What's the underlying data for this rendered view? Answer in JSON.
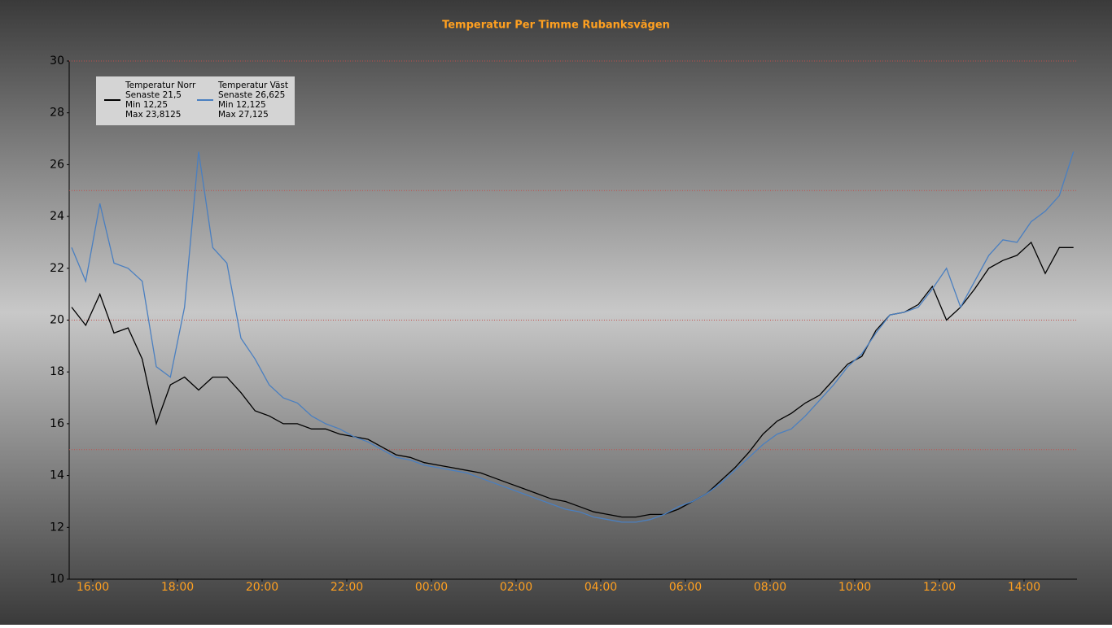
{
  "chart_data": {
    "type": "line",
    "title": "Temperatur Per Timme Rubanksvägen",
    "x": [
      "15:30",
      "15:50",
      "16:10",
      "16:30",
      "16:50",
      "17:10",
      "17:30",
      "17:50",
      "18:10",
      "18:30",
      "18:50",
      "19:10",
      "19:30",
      "19:50",
      "20:10",
      "20:30",
      "20:50",
      "21:10",
      "21:30",
      "21:50",
      "22:10",
      "22:30",
      "22:50",
      "23:10",
      "23:30",
      "23:50",
      "00:10",
      "00:30",
      "00:50",
      "01:10",
      "01:30",
      "01:50",
      "02:10",
      "02:30",
      "02:50",
      "03:10",
      "03:30",
      "03:50",
      "04:10",
      "04:30",
      "04:50",
      "05:10",
      "05:30",
      "05:50",
      "06:10",
      "06:30",
      "06:50",
      "07:10",
      "07:30",
      "07:50",
      "08:10",
      "08:30",
      "08:50",
      "09:10",
      "09:30",
      "09:50",
      "10:10",
      "10:30",
      "10:50",
      "11:10",
      "11:30",
      "11:50",
      "12:10",
      "12:30",
      "12:50",
      "13:10",
      "13:30",
      "13:50",
      "14:10",
      "14:30",
      "14:50",
      "15:10"
    ],
    "xticks": [
      "16:00",
      "18:00",
      "20:00",
      "22:00",
      "00:00",
      "02:00",
      "04:00",
      "06:00",
      "08:00",
      "10:00",
      "12:00",
      "14:00"
    ],
    "series": [
      {
        "name": "Temperatur Norr",
        "color": "#000000",
        "stats": [
          "Senaste 21,5",
          "Min 12,25",
          "Max 23,8125"
        ],
        "values": [
          20.5,
          19.8,
          21.0,
          19.5,
          19.7,
          18.5,
          16.0,
          17.5,
          17.8,
          17.3,
          17.8,
          17.8,
          17.2,
          16.5,
          16.3,
          16.0,
          16.0,
          15.8,
          15.8,
          15.6,
          15.5,
          15.4,
          15.1,
          14.8,
          14.7,
          14.5,
          14.4,
          14.3,
          14.2,
          14.1,
          13.9,
          13.7,
          13.5,
          13.3,
          13.1,
          13.0,
          12.8,
          12.6,
          12.5,
          12.4,
          12.4,
          12.5,
          12.5,
          12.7,
          13.0,
          13.3,
          13.8,
          14.3,
          14.9,
          15.6,
          16.1,
          16.4,
          16.8,
          17.1,
          17.7,
          18.3,
          18.6,
          19.6,
          20.2,
          20.3,
          20.6,
          21.3,
          20.0,
          20.5,
          21.2,
          22.0,
          22.3,
          22.5,
          23.0,
          21.8,
          22.8,
          22.8
        ]
      },
      {
        "name": "Temperatur Väst",
        "color": "#4a7fc0",
        "stats": [
          "Senaste 26,625",
          "Min 12,125",
          "Max 27,125"
        ],
        "values": [
          22.8,
          21.5,
          24.5,
          22.2,
          22.0,
          21.5,
          18.2,
          17.8,
          20.5,
          26.5,
          22.8,
          22.2,
          19.3,
          18.5,
          17.5,
          17.0,
          16.8,
          16.3,
          16.0,
          15.8,
          15.5,
          15.3,
          15.0,
          14.7,
          14.6,
          14.4,
          14.3,
          14.2,
          14.1,
          13.9,
          13.7,
          13.5,
          13.3,
          13.1,
          12.9,
          12.7,
          12.6,
          12.4,
          12.3,
          12.2,
          12.2,
          12.3,
          12.5,
          12.8,
          13.0,
          13.3,
          13.7,
          14.2,
          14.7,
          15.2,
          15.6,
          15.8,
          16.3,
          16.9,
          17.5,
          18.2,
          18.7,
          19.5,
          20.2,
          20.3,
          20.5,
          21.2,
          22.0,
          20.5,
          21.5,
          22.5,
          23.1,
          23.0,
          23.8,
          24.2,
          24.8,
          26.5
        ]
      }
    ],
    "ylim": [
      10,
      30
    ],
    "yticks": [
      10,
      12,
      14,
      16,
      18,
      20,
      22,
      24,
      26,
      28,
      30
    ],
    "reference_lines": [
      15,
      20,
      25,
      30
    ],
    "reference_color": "#c0504d",
    "legend": "upper left"
  }
}
